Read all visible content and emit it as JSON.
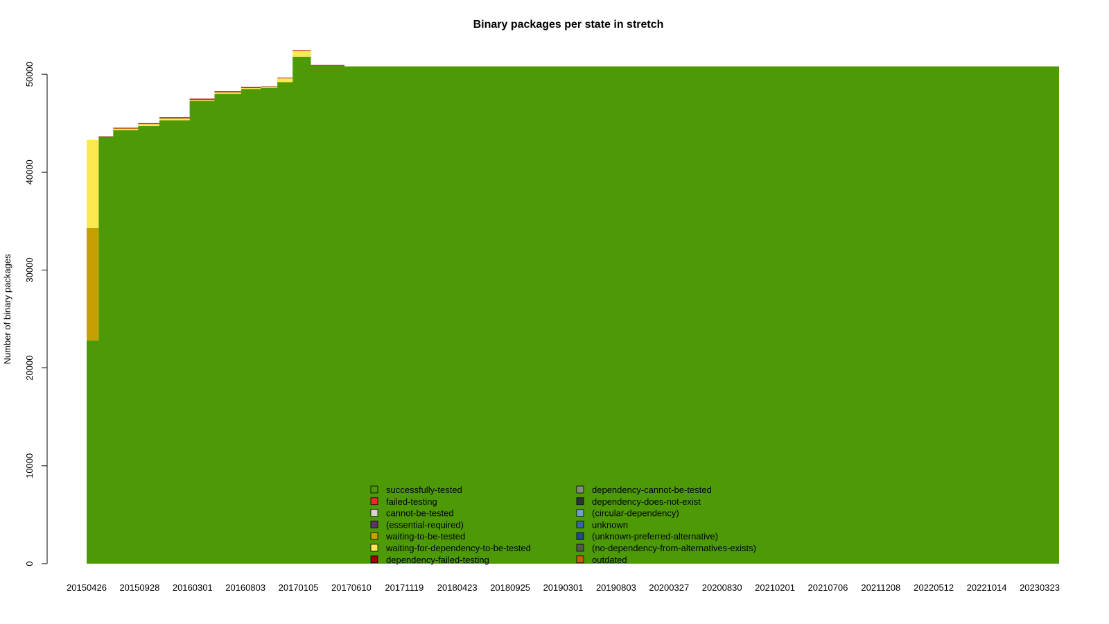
{
  "chart_data": {
    "type": "area",
    "title": "Binary packages per state in stretch",
    "xlabel": "",
    "ylabel": "Number of binary packages",
    "ylim": [
      0,
      51000
    ],
    "yticks": [
      0,
      10000,
      20000,
      30000,
      40000,
      50000
    ],
    "grid": false,
    "legend_position": "bottom-center",
    "x_tick_labels": [
      "20150426",
      "20150928",
      "20160301",
      "20160803",
      "20170105",
      "20170610",
      "20171119",
      "20180423",
      "20180925",
      "20190301",
      "20190803",
      "20200327",
      "20200830",
      "20210201",
      "20210706",
      "20211208",
      "20220512",
      "20221014",
      "20230323"
    ],
    "x": [
      "20150426",
      "20150601",
      "20150715",
      "20150928",
      "20151201",
      "20160301",
      "20160515",
      "20160803",
      "20161001",
      "20161120",
      "20170105",
      "20170301",
      "20170610",
      "20171119",
      "20180423",
      "20180925",
      "20190301",
      "20190803",
      "20200327",
      "20200830",
      "20210201",
      "20210706",
      "20211208",
      "20220512",
      "20221014",
      "20230323",
      "20230501"
    ],
    "series": [
      {
        "name": "successfully-tested",
        "color": "#4e9a06",
        "values": [
          22800,
          43600,
          44300,
          44700,
          45300,
          47300,
          48000,
          48500,
          48600,
          49200,
          51800,
          50900,
          50800,
          50800,
          50800,
          50800,
          50800,
          50800,
          50800,
          50800,
          50800,
          50800,
          50800,
          50800,
          50800,
          50800,
          50800
        ]
      },
      {
        "name": "failed-testing",
        "color": "#ef2929",
        "values": [
          0,
          0,
          0,
          0,
          0,
          0,
          0,
          0,
          0,
          0,
          0,
          0,
          0,
          0,
          0,
          0,
          0,
          0,
          0,
          0,
          0,
          0,
          0,
          0,
          0,
          0,
          0
        ]
      },
      {
        "name": "cannot-be-tested",
        "color": "#d3d7cf",
        "values": [
          0,
          0,
          0,
          0,
          0,
          0,
          0,
          0,
          0,
          0,
          0,
          0,
          0,
          0,
          0,
          0,
          0,
          0,
          0,
          0,
          0,
          0,
          0,
          0,
          0,
          0,
          0
        ]
      },
      {
        "name": "(essential-required)",
        "color": "#5c3566",
        "values": [
          0,
          0,
          0,
          0,
          0,
          0,
          0,
          0,
          0,
          0,
          0,
          0,
          0,
          0,
          0,
          0,
          0,
          0,
          0,
          0,
          0,
          0,
          0,
          0,
          0,
          0,
          0
        ]
      },
      {
        "name": "waiting-to-be-tested",
        "color": "#c4a000",
        "values": [
          11500,
          0,
          0,
          0,
          0,
          0,
          0,
          0,
          0,
          0,
          0,
          0,
          0,
          0,
          0,
          0,
          0,
          0,
          0,
          0,
          0,
          0,
          0,
          0,
          0,
          0,
          0
        ]
      },
      {
        "name": "waiting-for-dependency-to-be-tested",
        "color": "#fce94f",
        "values": [
          9000,
          0,
          150,
          200,
          200,
          100,
          150,
          100,
          100,
          400,
          600,
          0,
          0,
          0,
          0,
          0,
          0,
          0,
          0,
          0,
          0,
          0,
          0,
          0,
          0,
          0,
          0
        ]
      },
      {
        "name": "dependency-failed-testing",
        "color": "#a40000",
        "values": [
          0,
          50,
          80,
          100,
          100,
          100,
          120,
          100,
          60,
          60,
          60,
          50,
          0,
          0,
          0,
          0,
          0,
          0,
          0,
          0,
          0,
          0,
          0,
          0,
          0,
          0,
          0
        ]
      },
      {
        "name": "dependency-cannot-be-tested",
        "color": "#888a85",
        "values": [
          0,
          0,
          0,
          0,
          0,
          0,
          0,
          0,
          0,
          0,
          0,
          0,
          0,
          0,
          0,
          0,
          0,
          0,
          0,
          0,
          0,
          0,
          0,
          0,
          0,
          0,
          0
        ]
      },
      {
        "name": "dependency-does-not-exist",
        "color": "#2e3436",
        "values": [
          0,
          0,
          0,
          0,
          0,
          0,
          0,
          0,
          0,
          0,
          0,
          0,
          0,
          0,
          0,
          0,
          0,
          0,
          0,
          0,
          0,
          0,
          0,
          0,
          0,
          0,
          0
        ]
      },
      {
        "name": "(circular-dependency)",
        "color": "#729fcf",
        "values": [
          0,
          0,
          0,
          0,
          0,
          0,
          0,
          0,
          0,
          0,
          0,
          0,
          0,
          0,
          0,
          0,
          0,
          0,
          0,
          0,
          0,
          0,
          0,
          0,
          0,
          0,
          0
        ]
      },
      {
        "name": "unknown",
        "color": "#3465a4",
        "values": [
          0,
          0,
          0,
          0,
          0,
          0,
          0,
          0,
          0,
          0,
          0,
          0,
          0,
          0,
          0,
          0,
          0,
          0,
          0,
          0,
          0,
          0,
          0,
          0,
          0,
          0,
          0
        ]
      },
      {
        "name": "(unknown-preferred-alternative)",
        "color": "#204a87",
        "values": [
          0,
          0,
          0,
          0,
          0,
          0,
          0,
          0,
          0,
          0,
          0,
          0,
          0,
          0,
          0,
          0,
          0,
          0,
          0,
          0,
          0,
          0,
          0,
          0,
          0,
          0,
          0
        ]
      },
      {
        "name": "(no-dependency-from-alternatives-exists)",
        "color": "#555753",
        "values": [
          0,
          0,
          0,
          0,
          0,
          0,
          0,
          0,
          0,
          0,
          0,
          0,
          0,
          0,
          0,
          0,
          0,
          0,
          0,
          0,
          0,
          0,
          0,
          0,
          0,
          0,
          0
        ]
      },
      {
        "name": "outdated",
        "color": "#ce5c00",
        "values": [
          0,
          0,
          0,
          0,
          0,
          0,
          0,
          0,
          0,
          0,
          0,
          0,
          0,
          0,
          0,
          0,
          0,
          0,
          0,
          0,
          0,
          0,
          0,
          0,
          0,
          0,
          0
        ]
      }
    ]
  }
}
